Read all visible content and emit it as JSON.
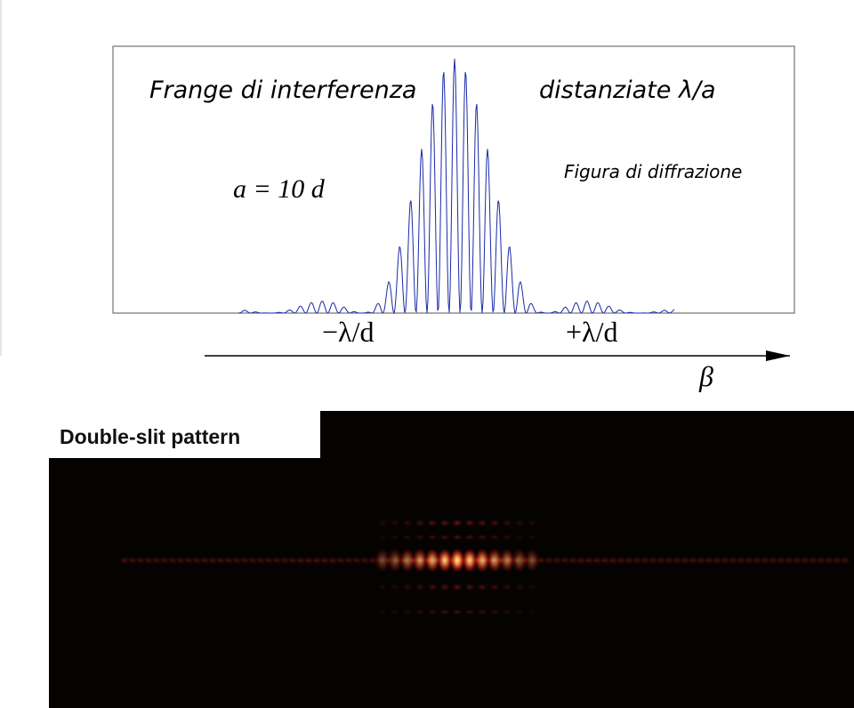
{
  "plot": {
    "left_label": "Frange di interferenza",
    "right_label": "distanziate λ/a",
    "envelope_label": "Figura di diffrazione",
    "ratio_label": "a = 10 d",
    "minus_tick": "−λ/d",
    "plus_tick": "+λ/d",
    "axis_label": "β"
  },
  "photo": {
    "caption": "Double-slit pattern"
  }
}
